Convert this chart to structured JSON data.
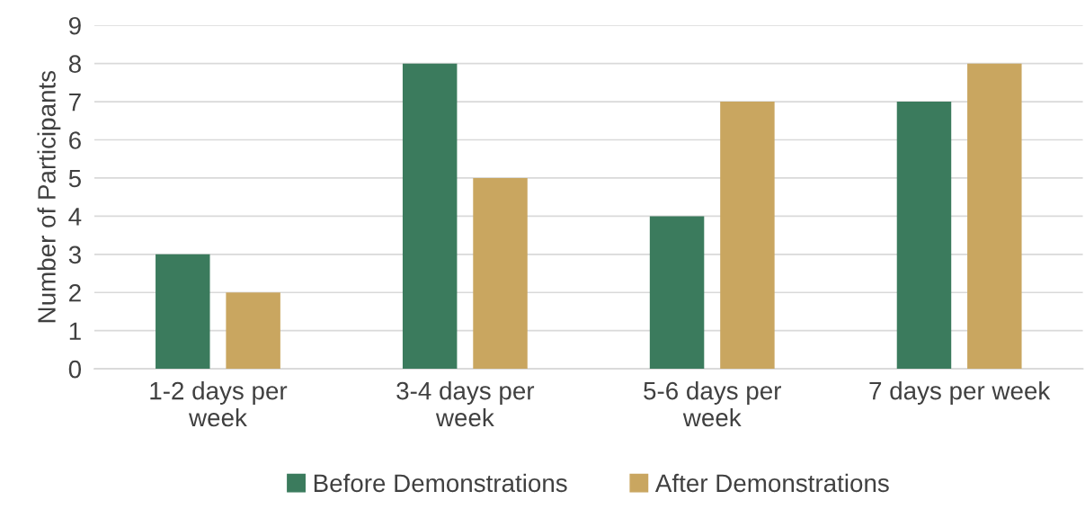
{
  "chart_data": {
    "type": "bar",
    "ylabel": "Number of Participants",
    "categories": [
      "1-2 days per week",
      "3-4 days per week",
      "5-6 days per week",
      "7 days per week"
    ],
    "series": [
      {
        "name": "Before Demonstrations",
        "color": "#3b7b5d",
        "values": [
          3,
          8,
          4,
          7
        ]
      },
      {
        "name": "After Demonstrations",
        "color": "#c9a660",
        "values": [
          2,
          5,
          7,
          8
        ]
      }
    ],
    "ylim": [
      0,
      9
    ],
    "yticks": [
      0,
      1,
      2,
      3,
      4,
      5,
      6,
      7,
      8,
      9
    ],
    "grid": "y",
    "legend": "bottom"
  }
}
